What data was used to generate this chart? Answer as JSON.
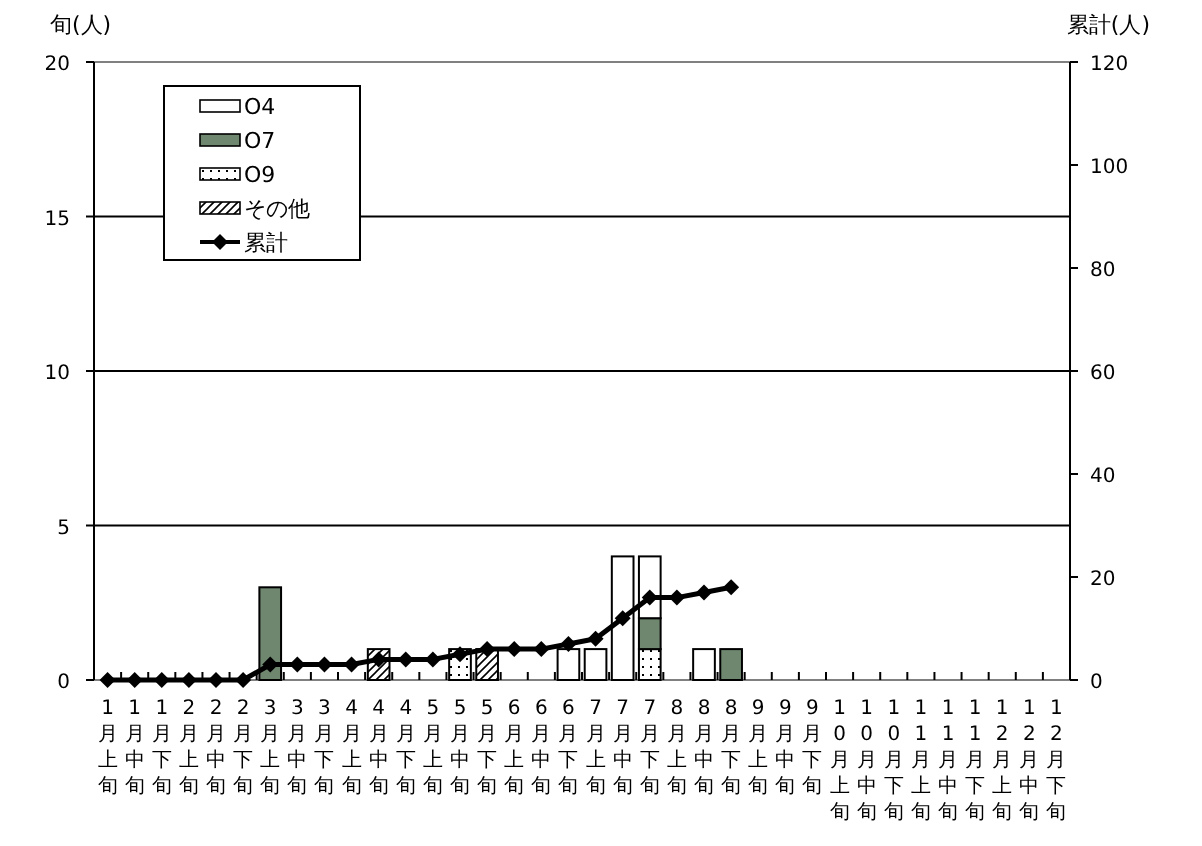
{
  "chart_data": {
    "type": "bar",
    "stacked": true,
    "ylabel": "旬(人)",
    "y2label": "累計(人)",
    "categories": [
      "1月上旬",
      "1月中旬",
      "1月下旬",
      "2月上旬",
      "2月中旬",
      "2月下旬",
      "3月上旬",
      "3月中旬",
      "3月下旬",
      "4月上旬",
      "4月中旬",
      "4月下旬",
      "5月上旬",
      "5月中旬",
      "5月下旬",
      "6月上旬",
      "6月中旬",
      "6月下旬",
      "7月上旬",
      "7月中旬",
      "7月下旬",
      "8月上旬",
      "8月中旬",
      "8月下旬",
      "9月上旬",
      "9月中旬",
      "9月下旬",
      "10月上旬",
      "10月中旬",
      "10月下旬",
      "11月上旬",
      "11月中旬",
      "11月下旬",
      "12月上旬",
      "12月中旬",
      "12月下旬"
    ],
    "ylim": [
      0,
      20
    ],
    "yticks": [
      0,
      5,
      10,
      15,
      20
    ],
    "y2lim": [
      0,
      120
    ],
    "y2ticks": [
      0,
      20,
      40,
      60,
      80,
      100,
      120
    ],
    "grid": "y",
    "legend": "top left",
    "series": [
      {
        "name": "その他",
        "color": "#000000",
        "values": [
          null,
          null,
          null,
          null,
          null,
          null,
          null,
          null,
          null,
          null,
          1,
          null,
          null,
          null,
          1,
          null,
          null,
          null,
          null,
          null,
          null,
          null,
          null,
          null,
          null,
          null,
          null,
          null,
          null,
          null,
          null,
          null,
          null,
          null,
          null,
          null
        ]
      },
      {
        "name": "O9",
        "color": "#000000",
        "values": [
          null,
          null,
          null,
          null,
          null,
          null,
          null,
          null,
          null,
          null,
          null,
          null,
          null,
          1,
          null,
          null,
          null,
          null,
          null,
          null,
          1,
          null,
          null,
          null,
          null,
          null,
          null,
          null,
          null,
          null,
          null,
          null,
          null,
          null,
          null,
          null
        ]
      },
      {
        "name": "O7",
        "color": "#6f876f",
        "values": [
          null,
          null,
          null,
          null,
          null,
          null,
          3,
          null,
          null,
          null,
          null,
          null,
          null,
          null,
          null,
          null,
          null,
          null,
          null,
          null,
          1,
          null,
          null,
          1,
          null,
          null,
          null,
          null,
          null,
          null,
          null,
          null,
          null,
          null,
          null,
          null
        ]
      },
      {
        "name": "O4",
        "color": "#ffffff",
        "values": [
          null,
          null,
          null,
          null,
          null,
          null,
          null,
          null,
          null,
          null,
          null,
          null,
          null,
          null,
          null,
          null,
          null,
          1,
          1,
          4,
          2,
          null,
          1,
          null,
          null,
          null,
          null,
          null,
          null,
          null,
          null,
          null,
          null,
          null,
          null,
          null
        ]
      },
      {
        "name": "累計",
        "type": "line",
        "axis": "y2",
        "color": "#000000",
        "marker": "diamond",
        "line_style": "solid",
        "values": [
          0,
          0,
          0,
          0,
          0,
          0,
          3,
          3,
          3,
          3,
          4,
          4,
          4,
          5,
          6,
          6,
          6,
          7,
          8,
          12,
          16,
          16,
          17,
          18,
          null,
          null,
          null,
          null,
          null,
          null,
          null,
          null,
          null,
          null,
          null,
          null
        ]
      }
    ]
  }
}
